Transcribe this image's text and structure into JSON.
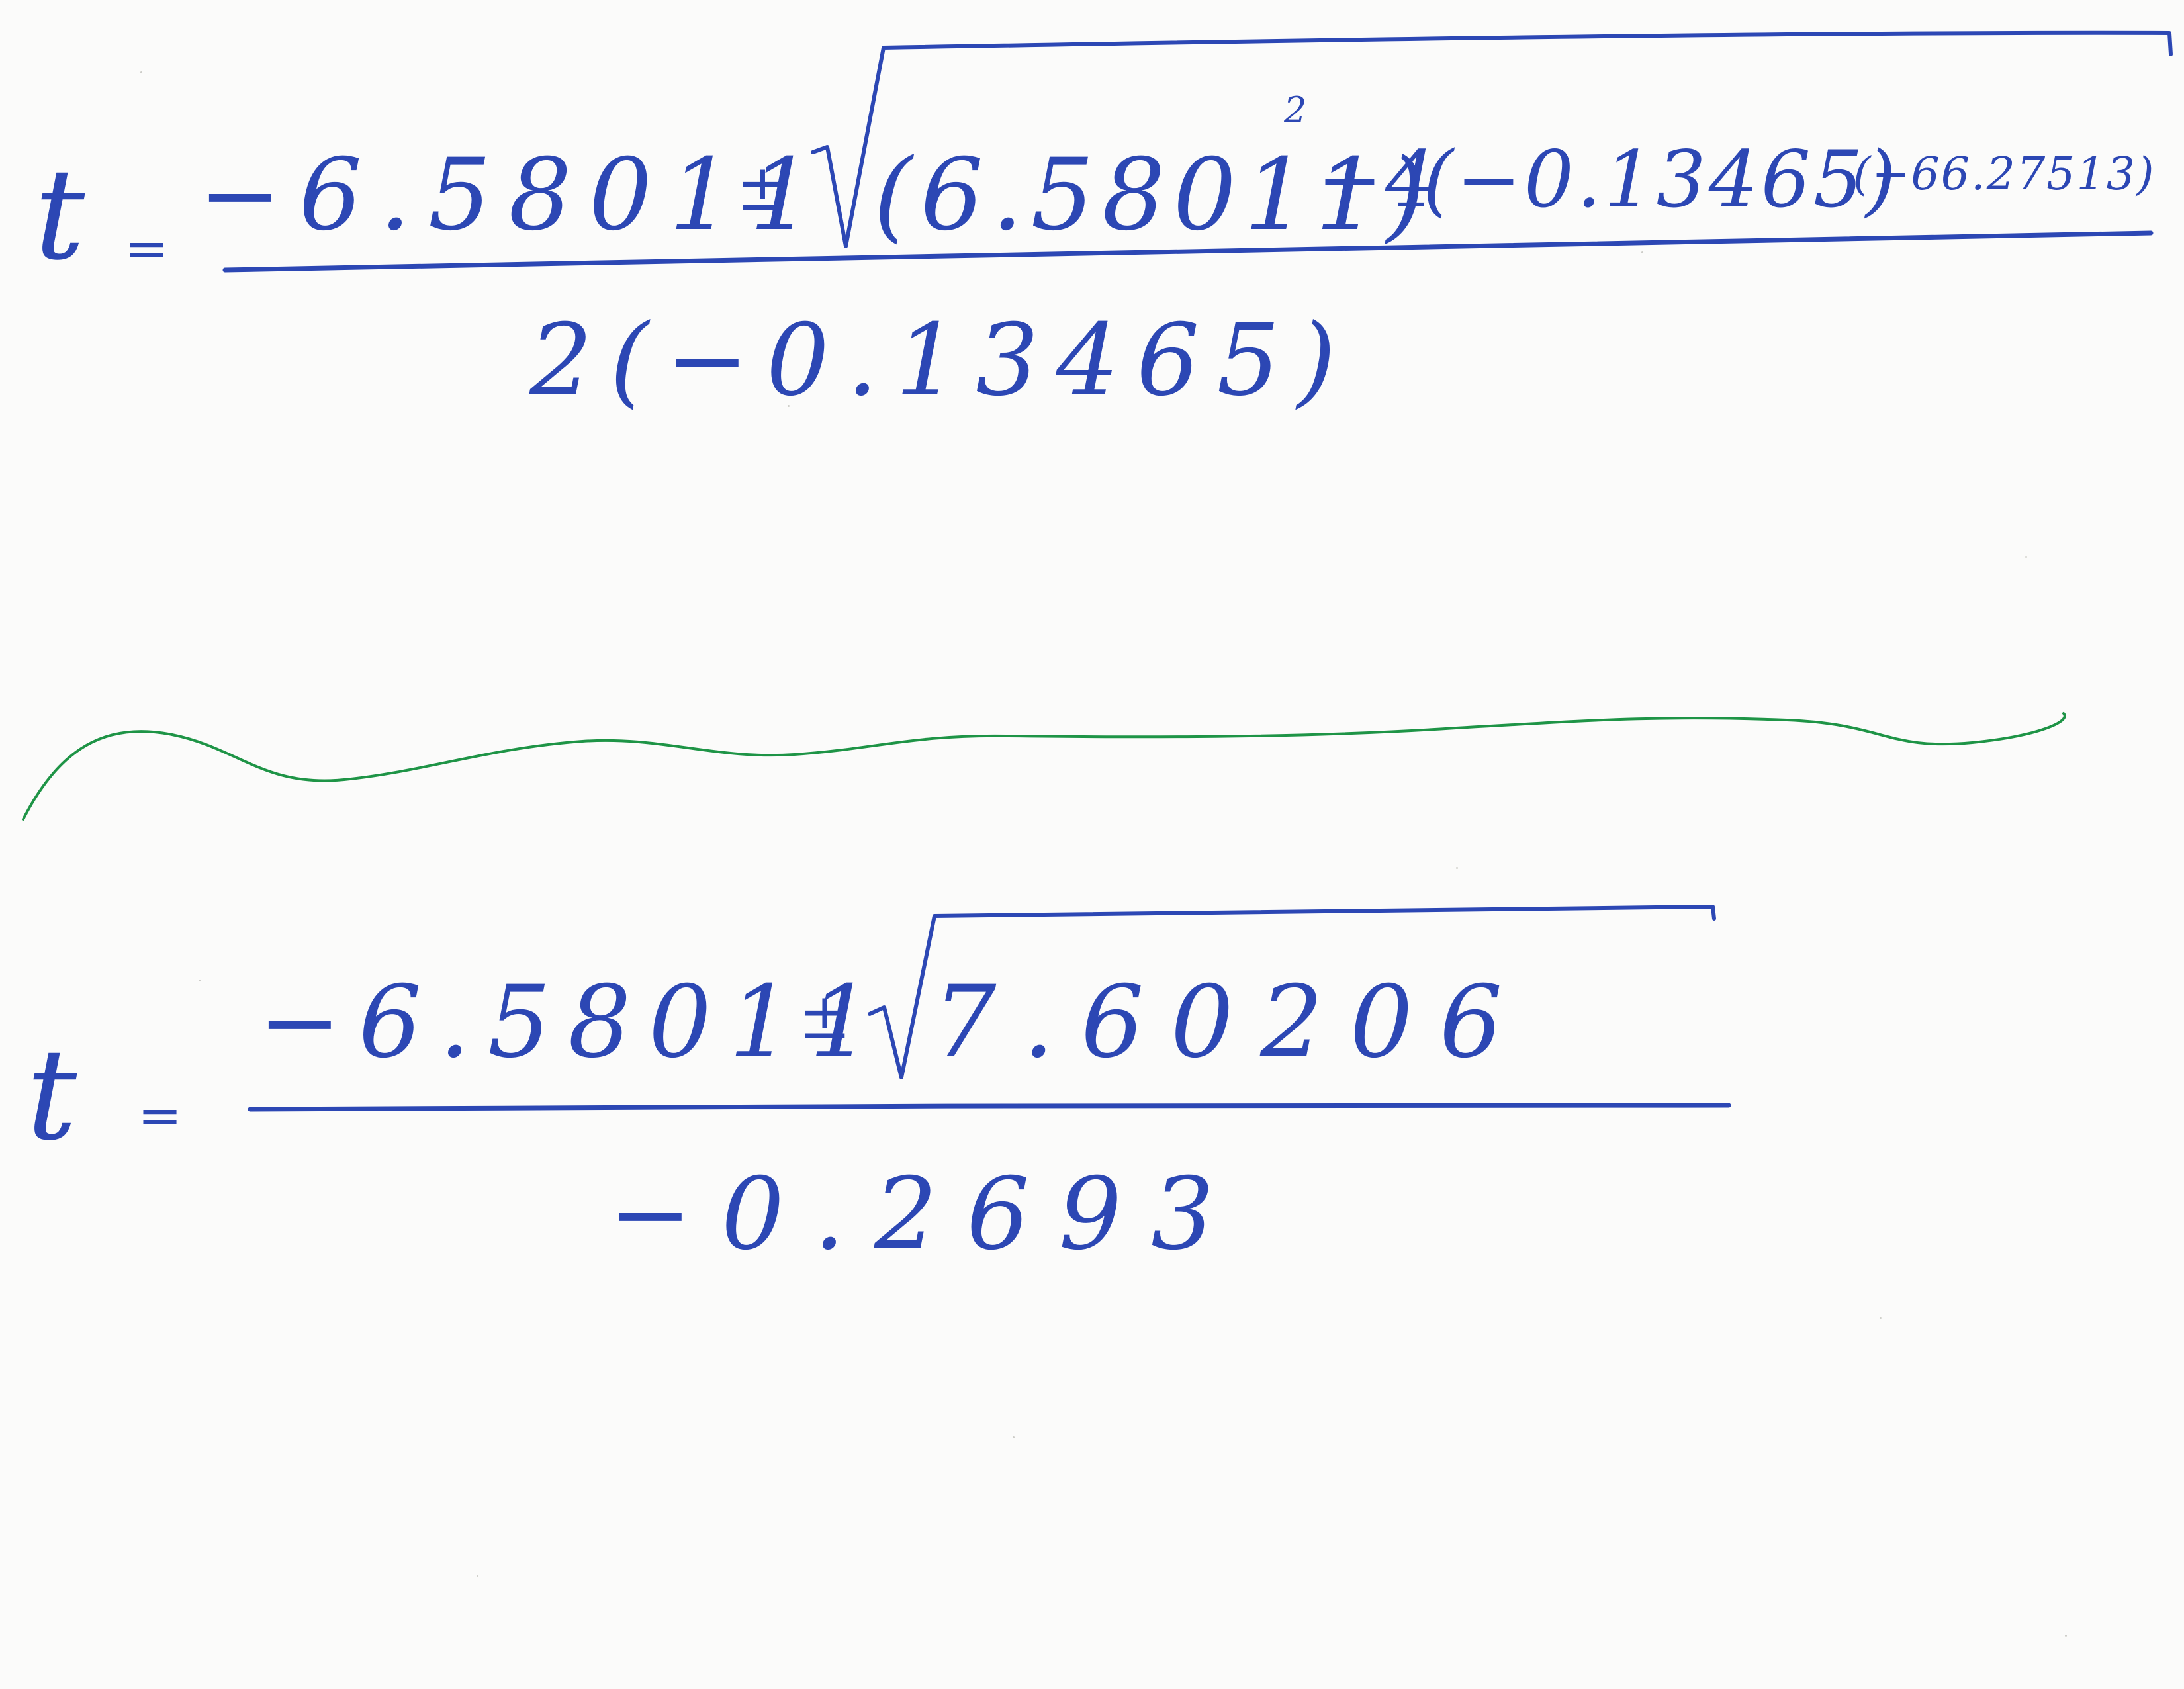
{
  "colors": {
    "ink_blue": "#2c47b4",
    "ink_green": "#1e9446",
    "paper": "#fbfbfa"
  },
  "equation_1": {
    "lhs": "t",
    "equals": "=",
    "numerator": {
      "b_term": "−6.58011",
      "plus_minus": "±",
      "radicand": {
        "b_squared_base": "(6.58011)",
        "exponent": "2",
        "minus_4": "−4",
        "a_factor": "(−0.13465)",
        "c_factor": "(−66.27513)"
      }
    },
    "denominator": "2(−0.13465)"
  },
  "separator_icon": "wavy-line-separator",
  "equation_2": {
    "lhs": "t",
    "equals": "=",
    "numerator": {
      "b_term": "−6.58011",
      "plus_minus": "±",
      "radicand": "7.60206"
    },
    "denominator": "−0.2693"
  }
}
